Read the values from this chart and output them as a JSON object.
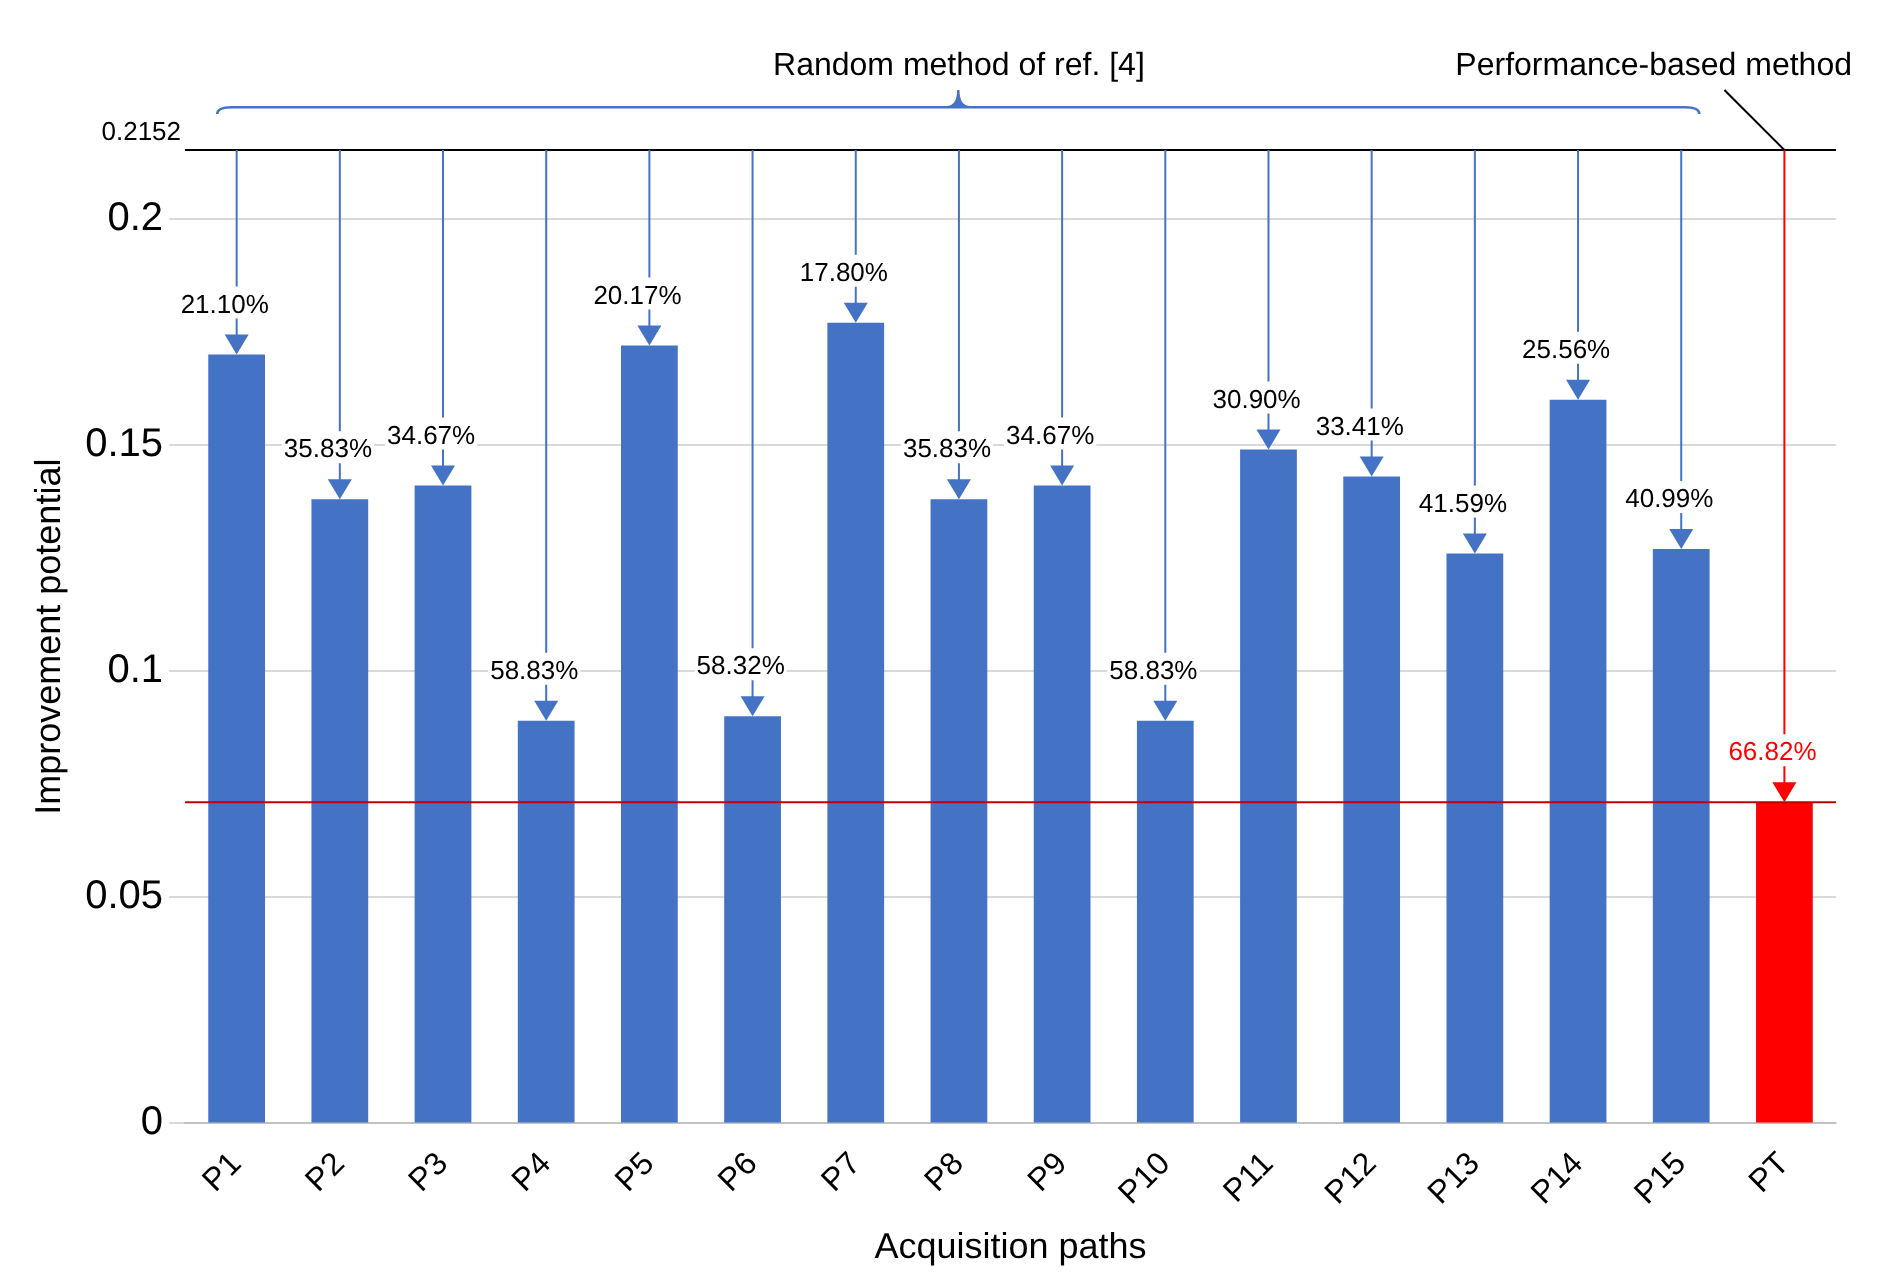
{
  "chart_data": {
    "type": "bar",
    "xlabel": "Acquisition paths",
    "ylabel": "Improvement potential",
    "categories": [
      "P1",
      "P2",
      "P3",
      "P4",
      "P5",
      "P6",
      "P7",
      "P8",
      "P9",
      "P10",
      "P11",
      "P12",
      "P13",
      "P14",
      "P15",
      "PT"
    ],
    "values": [
      0.17,
      0.138,
      0.141,
      0.089,
      0.172,
      0.09,
      0.177,
      0.138,
      0.141,
      0.089,
      0.149,
      0.143,
      0.126,
      0.16,
      0.127,
      0.071
    ],
    "colors": [
      "#4472c4",
      "#4472c4",
      "#4472c4",
      "#4472c4",
      "#4472c4",
      "#4472c4",
      "#4472c4",
      "#4472c4",
      "#4472c4",
      "#4472c4",
      "#4472c4",
      "#4472c4",
      "#4472c4",
      "#4472c4",
      "#4472c4",
      "#ff0000"
    ],
    "ylim": [
      0,
      0.2152
    ],
    "yticks": [
      0,
      0.05,
      0.1,
      0.15,
      0.2
    ],
    "grid": "y",
    "legend": false,
    "ref_lines": [
      {
        "axis": "y",
        "value": 0.2152,
        "label": "0.2152",
        "color": "#000000"
      },
      {
        "axis": "y",
        "value": 0.071,
        "color": "#c00000"
      }
    ],
    "annotations": [
      "Random method of ref. [4]",
      {
        "text": "Performance-based method",
        "x": "PT",
        "y": 0.2152
      },
      {
        "text": "21.10%",
        "x": "P1",
        "y": 0.17
      },
      {
        "text": "35.83%",
        "x": "P2",
        "y": 0.138
      },
      {
        "text": "34.67%",
        "x": "P3",
        "y": 0.141
      },
      {
        "text": "58.83%",
        "x": "P4",
        "y": 0.089
      },
      {
        "text": "20.17%",
        "x": "P5",
        "y": 0.172
      },
      {
        "text": "58.32%",
        "x": "P6",
        "y": 0.09
      },
      {
        "text": "17.80%",
        "x": "P7",
        "y": 0.177
      },
      {
        "text": "35.83%",
        "x": "P8",
        "y": 0.138
      },
      {
        "text": "34.67%",
        "x": "P9",
        "y": 0.141
      },
      {
        "text": "58.83%",
        "x": "P10",
        "y": 0.089
      },
      {
        "text": "30.90%",
        "x": "P11",
        "y": 0.149
      },
      {
        "text": "33.41%",
        "x": "P12",
        "y": 0.143
      },
      {
        "text": "41.59%",
        "x": "P13",
        "y": 0.126
      },
      {
        "text": "25.56%",
        "x": "P14",
        "y": 0.16
      },
      {
        "text": "40.99%",
        "x": "P15",
        "y": 0.127
      },
      {
        "text": "66.82%",
        "x": "PT",
        "y": 0.071
      }
    ]
  }
}
